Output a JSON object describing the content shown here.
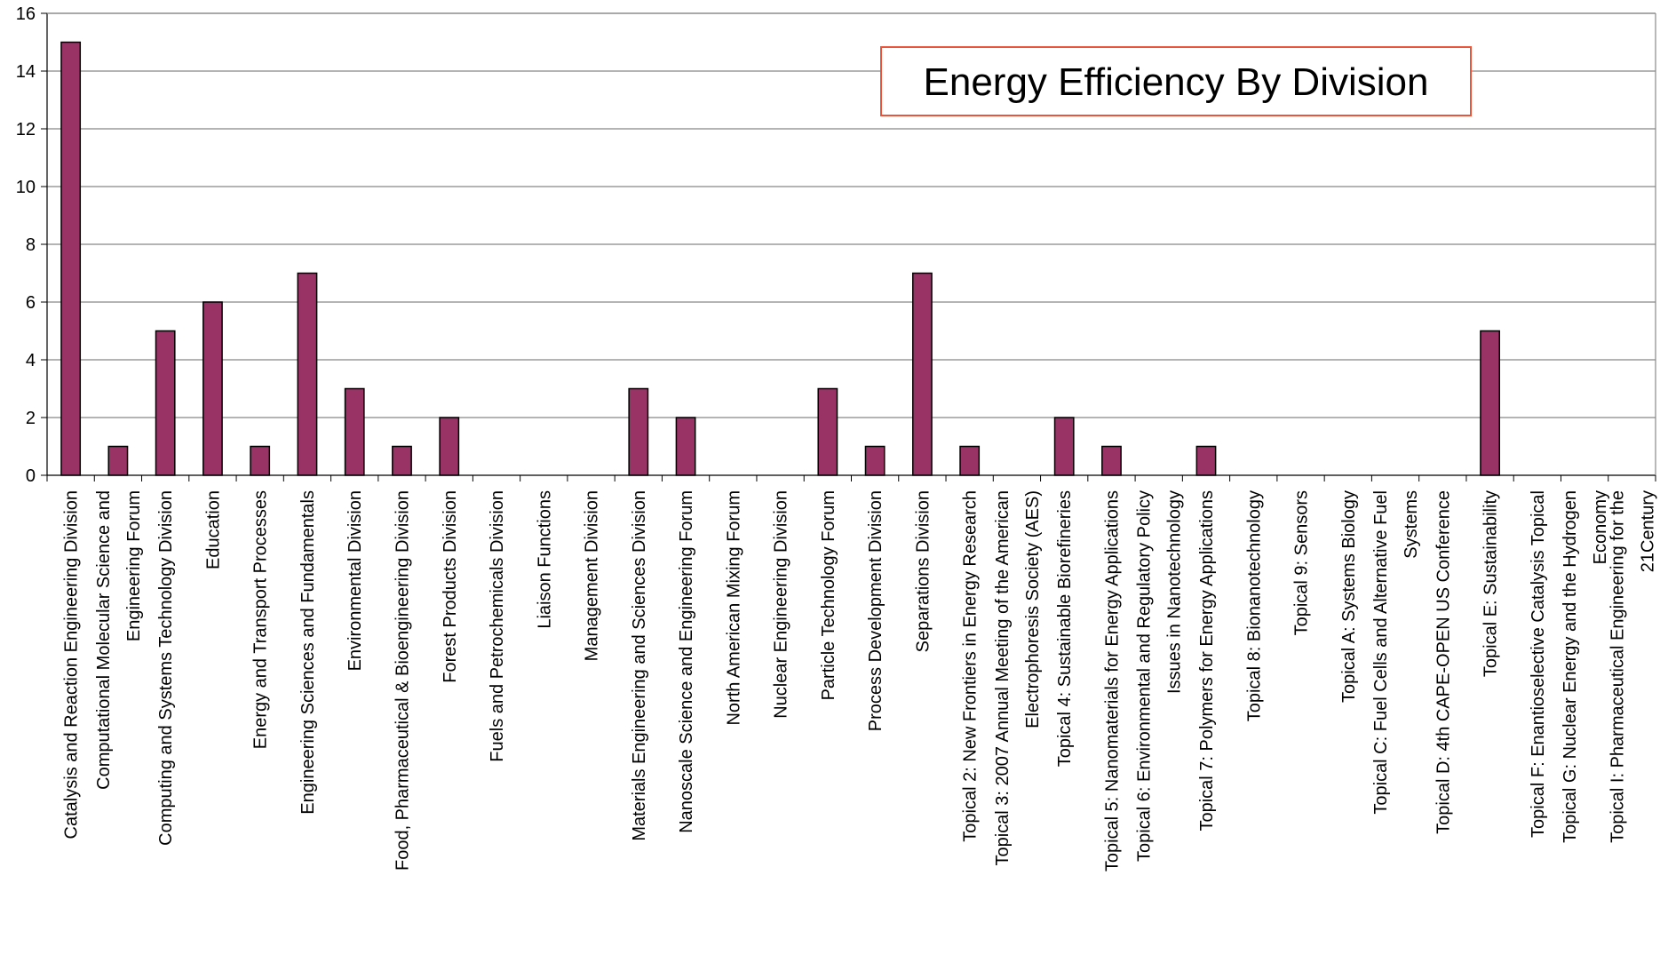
{
  "colors": {
    "bar_fill": "#993366",
    "bar_stroke": "#000000",
    "grid": "#888888",
    "title_border": "#e8553a"
  },
  "chart_data": {
    "type": "bar",
    "title": "Energy Efficiency By Division",
    "xlabel": "",
    "ylabel": "",
    "ylim": [
      0,
      16
    ],
    "yticks": [
      0,
      2,
      4,
      6,
      8,
      10,
      12,
      14,
      16
    ],
    "grid": true,
    "legend": "none",
    "categories": [
      [
        "Catalysis and Reaction Engineering Division"
      ],
      [
        "Computational Molecular Science and",
        "Engineering Forum"
      ],
      [
        "Computing and Systems Technology Division"
      ],
      [
        "Education"
      ],
      [
        "Energy and Transport Processes"
      ],
      [
        "Engineering Sciences and Fundamentals"
      ],
      [
        "Environmental Division"
      ],
      [
        "Food, Pharmaceutical & Bioengineering Division"
      ],
      [
        "Forest Products Division"
      ],
      [
        "Fuels and Petrochemicals Division"
      ],
      [
        "Liaison Functions"
      ],
      [
        "Management Division"
      ],
      [
        "Materials Engineering and Sciences Division"
      ],
      [
        "Nanoscale Science and Engineering Forum"
      ],
      [
        "North American Mixing Forum"
      ],
      [
        "Nuclear Engineering Division"
      ],
      [
        "Particle Technology Forum"
      ],
      [
        "Process Development Division"
      ],
      [
        "Separations Division"
      ],
      [
        "Topical 2: New Frontiers in Energy Research"
      ],
      [
        "Topical 3: 2007 Annual Meeting of the American",
        "Electrophoresis Society (AES)"
      ],
      [
        "Topical 4: Sustainable Biorefineries"
      ],
      [
        "Topical 5: Nanomaterials for Energy Applications"
      ],
      [
        "Topical 6: Environmental and Regulatory Policy",
        "Issues in Nanotechnology"
      ],
      [
        "Topical 7: Polymers for Energy Applications"
      ],
      [
        "Topical 8: Bionanotechnology"
      ],
      [
        "Topical 9: Sensors"
      ],
      [
        "Topical A: Systems Biology"
      ],
      [
        "Topical C: Fuel Cells and Alternative Fuel",
        "Systems"
      ],
      [
        "Topical D: 4th CAPE-OPEN US Conference"
      ],
      [
        "Topical E: Sustainability"
      ],
      [
        "Topical F: Enantioselective Catalysis Topical"
      ],
      [
        "Topical G: Nuclear Energy and the Hydrogen",
        "Economy"
      ],
      [
        "Topical I: Pharmaceutical Engineering for the",
        "21Century"
      ]
    ],
    "values": [
      15,
      1,
      5,
      6,
      1,
      7,
      3,
      1,
      2,
      0,
      0,
      0,
      3,
      2,
      0,
      0,
      3,
      1,
      7,
      1,
      0,
      2,
      1,
      0,
      1,
      0,
      0,
      0,
      0,
      0,
      5,
      0,
      0,
      0
    ]
  }
}
